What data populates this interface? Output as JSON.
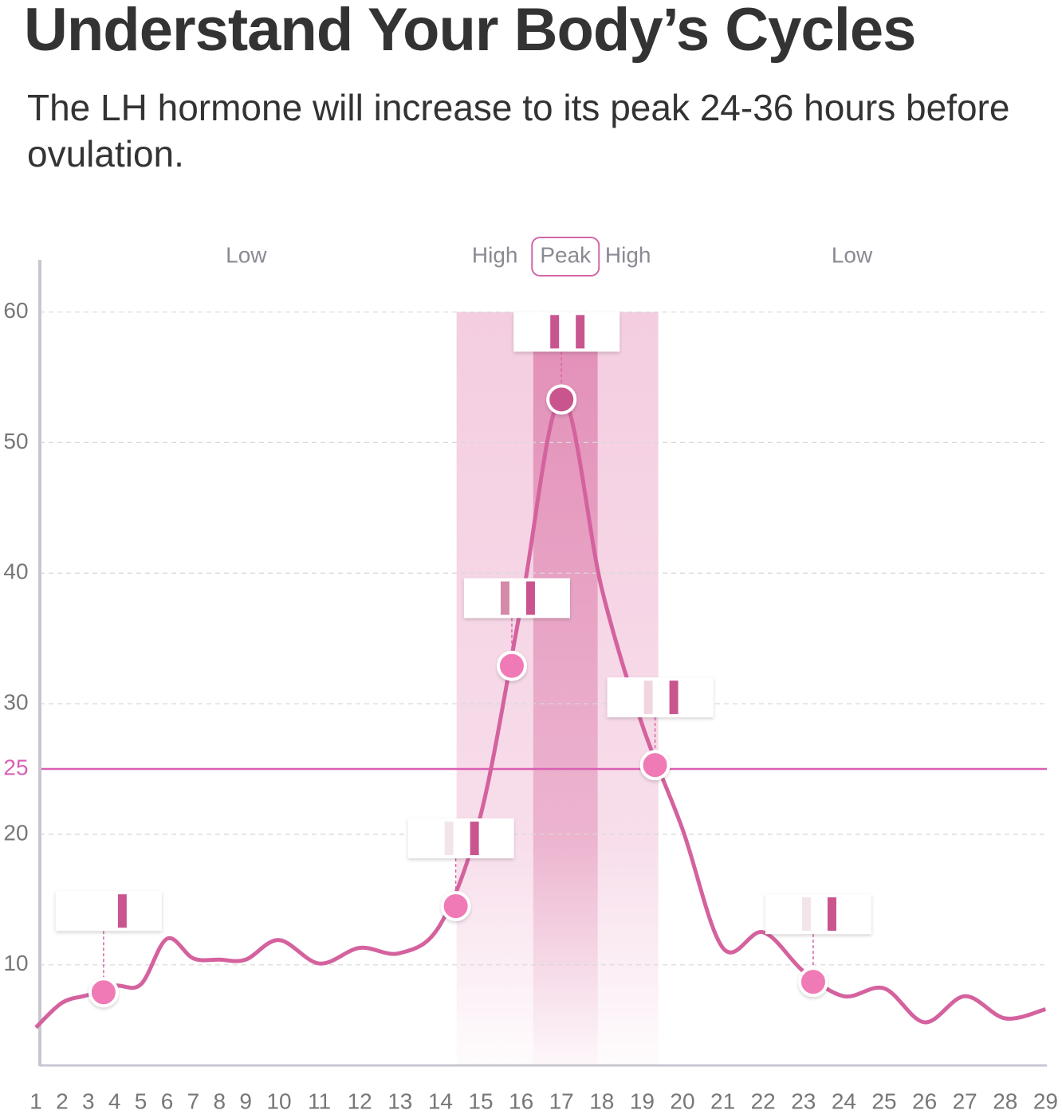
{
  "chart_data": {
    "type": "line",
    "title": "Understand Your Body’s Cycles",
    "subtitle": "The LH hormone will increase to its peak 24-36 hours before ovulation.",
    "x": [
      1,
      2,
      3,
      4,
      5,
      6,
      7,
      8,
      9,
      10,
      11,
      12,
      13,
      14,
      15,
      16,
      17,
      18,
      19,
      20,
      21,
      22,
      23,
      24,
      25,
      26,
      27,
      28,
      29
    ],
    "xticks": [
      1,
      2,
      3,
      4,
      5,
      6,
      7,
      8,
      9,
      10,
      11,
      12,
      13,
      14,
      15,
      16,
      17,
      18,
      19,
      20,
      21,
      22,
      23,
      24,
      25,
      26,
      27,
      28,
      29
    ],
    "xlim": [
      1,
      29
    ],
    "series": [
      {
        "color": "#d4629e",
        "values": [
          5.2,
          7.1,
          7.7,
          8.4,
          8.5,
          12.0,
          10.5,
          10.4,
          10.4,
          11.9,
          10.1,
          11.3,
          10.9,
          13.1,
          21.5,
          37.5,
          53.4,
          38.8,
          28.4,
          20.4,
          11.3,
          12.5,
          9.5,
          7.6,
          8.2,
          5.6,
          7.6,
          5.9,
          6.6
        ]
      }
    ],
    "ylim": [
      2.3,
      64
    ],
    "yticks": [
      10,
      20,
      30,
      40,
      50,
      60
    ],
    "grid": true,
    "threshold": {
      "value": 25,
      "color": "#d95fb4"
    },
    "phases": [
      {
        "label": "Low",
        "from": 1,
        "to": 14.4
      },
      {
        "label": "High",
        "from": 14.4,
        "to": 16.3,
        "color": "#f0bcd6"
      },
      {
        "label": "Peak",
        "from": 16.3,
        "to": 17.9,
        "color": "#d9699f"
      },
      {
        "label": "High",
        "from": 17.9,
        "to": 19.4,
        "color": "#f0bcd6"
      },
      {
        "label": "Low",
        "from": 19.4,
        "to": 29
      }
    ],
    "markers": [
      {
        "x": 3.58,
        "value": 7.9,
        "color": "#f07ab5",
        "test_color": "#ffffff"
      },
      {
        "x": 14.38,
        "value": 14.5,
        "color": "#f07ab5",
        "test_color": "#f3e4ea"
      },
      {
        "x": 15.77,
        "value": 32.9,
        "color": "#f07ab5",
        "test_color": "#d48aa8"
      },
      {
        "x": 17,
        "value": 53.3,
        "color": "#c9558f",
        "test_color": "#c9558f"
      },
      {
        "x": 19.32,
        "value": 25.3,
        "color": "#f07ab5",
        "test_color": "#f0d6e0"
      },
      {
        "x": 23.24,
        "value": 8.7,
        "color": "#f07ab5",
        "test_color": "#f3e4ea"
      }
    ]
  }
}
